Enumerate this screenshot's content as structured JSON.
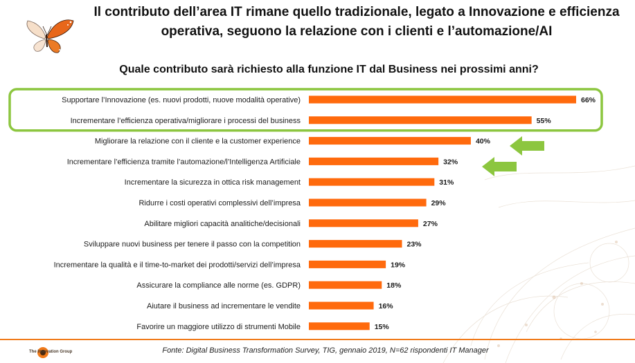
{
  "headline": "Il contributo dell’area IT rimane quello tradizionale, legato a Innovazione e efficienza operativa, seguono la relazione con i clienti e l’automazione/AI",
  "logo_text": "The Innovation Group",
  "source": "Fonte: Digital Business Transformation Survey, TIG, gennaio 2019, N=62 rispondenti IT Manager",
  "colors": {
    "bar": "#ff6a0d",
    "highlight": "#8cc63f",
    "arrow": "#8cc63f",
    "footer_line": "#f07a1a"
  },
  "chart_data": {
    "type": "bar",
    "orientation": "horizontal",
    "title": "Quale contributo sarà richiesto alla funzione IT dal Business nei prossimi anni?",
    "categories": [
      "Supportare l’Innovazione (es. nuovi prodotti, nuove modalità operative)",
      "Incrementare l’efficienza operativa/migliorare i processi del business",
      "Migliorare la relazione con il cliente e la customer experience",
      "Incrementare l’efficienza tramite l’automazione/l’Intelligenza Artificiale",
      "Incrementare la sicurezza in ottica risk management",
      "Ridurre i costi operativi complessivi dell’impresa",
      "Abilitare migliori capacità analitiche/decisionali",
      "Sviluppare nuovi business per tenere il passo con la competition",
      "Incrementare la qualità e il time-to-market dei prodotti/servizi dell’impresa",
      "Assicurare la compliance alle norme (es. GDPR)",
      "Aiutare il business ad incrementare le vendite",
      "Favorire un maggiore utilizzo di strumenti Mobile"
    ],
    "values": [
      66,
      55,
      40,
      32,
      31,
      29,
      27,
      23,
      19,
      18,
      16,
      15
    ],
    "value_labels": [
      "66%",
      "55%",
      "40%",
      "32%",
      "31%",
      "29%",
      "27%",
      "23%",
      "19%",
      "18%",
      "16%",
      "15%"
    ],
    "unit": "%",
    "xlim": [
      0,
      66
    ],
    "highlighted_categories": [
      0,
      1
    ],
    "arrow_categories": [
      2,
      3
    ]
  }
}
